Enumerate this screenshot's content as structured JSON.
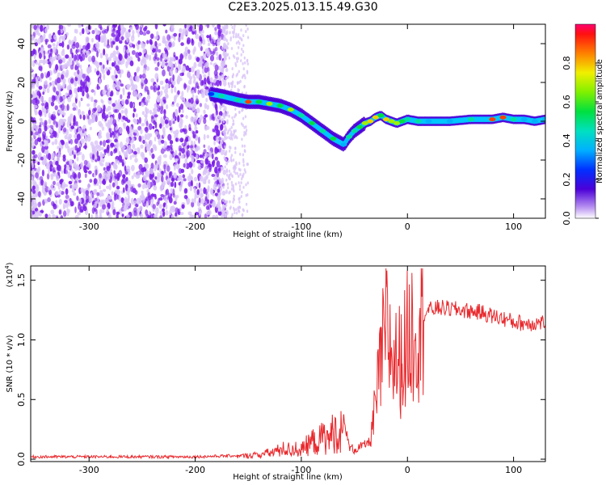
{
  "title": "C2E3.2025.013.15.49.G30",
  "colors": {
    "line": "#e8292d",
    "track_low": "#4a00d8",
    "noise": "#7b1fe8",
    "noise_faint": "#d9c4f8",
    "axis": "#000000"
  },
  "colorbar": {
    "label": "Normalized spectral amplitude",
    "ticks": [
      "0.0",
      "0.2",
      "0.4",
      "0.6",
      "0.8"
    ],
    "tick_values": [
      0.0,
      0.2,
      0.4,
      0.6,
      0.8
    ],
    "range": [
      0,
      1
    ]
  },
  "chart_data": [
    {
      "type": "heatmap",
      "xlabel": "Height of straight line (km)",
      "ylabel": "Frequency (Hz)",
      "xlim": [
        -355,
        130
      ],
      "ylim": [
        -50,
        50
      ],
      "xticks": [
        -300,
        -200,
        -100,
        0,
        100
      ],
      "xtick_labels": [
        "-300",
        "-200",
        "-100",
        "0",
        "100"
      ],
      "yticks": [
        -40,
        -20,
        0,
        20,
        40
      ],
      "ytick_labels": [
        "-40",
        "-20",
        "0",
        "20",
        "40"
      ],
      "track": {
        "x": [
          -185,
          -175,
          -160,
          -150,
          -140,
          -130,
          -120,
          -110,
          -100,
          -90,
          -80,
          -70,
          -60,
          -55,
          -50,
          -45,
          -40,
          -35,
          -30,
          -25,
          -20,
          -15,
          -10,
          -5,
          0,
          10,
          20,
          40,
          60,
          80,
          90,
          100,
          110,
          120,
          130
        ],
        "y": [
          14,
          13,
          11,
          10,
          10,
          9,
          8,
          6,
          3,
          -1,
          -5,
          -9,
          -12,
          -8,
          -5,
          -3,
          -1,
          0,
          2,
          3,
          1,
          0,
          -1,
          0,
          1,
          0,
          0,
          0,
          1,
          1,
          2,
          1,
          1,
          0,
          1
        ],
        "amplitude": [
          0.3,
          0.5,
          0.5,
          0.9,
          0.6,
          0.7,
          0.6,
          0.7,
          0.5,
          0.6,
          0.5,
          0.6,
          0.4,
          0.5,
          0.5,
          0.6,
          0.7,
          0.8,
          0.8,
          0.6,
          0.8,
          0.7,
          0.7,
          0.6,
          0.5,
          0.5,
          0.45,
          0.45,
          0.5,
          0.9,
          0.95,
          0.5,
          0.45,
          0.45,
          0.4
        ]
      }
    },
    {
      "type": "line",
      "xlabel": "Height of straight line (km)",
      "ylabel": "SNR (10 * v/v)",
      "y_multiplier": "(x10",
      "y_multiplier_exp": "4",
      "y_multiplier_close": ")",
      "xlim": [
        -355,
        130
      ],
      "ylim": [
        -0.02,
        1.62
      ],
      "xticks": [
        -300,
        -200,
        -100,
        0,
        100
      ],
      "xtick_labels": [
        "-300",
        "-200",
        "-100",
        "0",
        "100"
      ],
      "yticks": [
        0.0,
        0.5,
        1.0,
        1.5
      ],
      "ytick_labels": [
        "0.0",
        "0.5",
        "1.0",
        "1.5"
      ],
      "series": [
        {
          "x": [
            -355,
            -340,
            -320,
            -300,
            -280,
            -260,
            -240,
            -220,
            -200,
            -180,
            -160,
            -150,
            -140,
            -130,
            -120,
            -115,
            -110,
            -105,
            -100,
            -95,
            -90,
            -85,
            -80,
            -75,
            -70,
            -65,
            -60,
            -55,
            -50,
            -45,
            -40,
            -35,
            -30,
            -25,
            -20,
            -15,
            -10,
            -5,
            0,
            10,
            20,
            30,
            40,
            50,
            60,
            70,
            80,
            90,
            100,
            110,
            120,
            130
          ],
          "y": [
            0.02,
            0.02,
            0.02,
            0.02,
            0.02,
            0.02,
            0.02,
            0.02,
            0.02,
            0.025,
            0.03,
            0.04,
            0.05,
            0.07,
            0.1,
            0.12,
            0.1,
            0.12,
            0.1,
            0.15,
            0.2,
            0.18,
            0.25,
            0.22,
            0.3,
            0.28,
            0.35,
            0.1,
            0.08,
            0.1,
            0.12,
            0.15,
            0.45,
            0.8,
            1.1,
            0.9,
            0.8,
            0.85,
            1.0,
            1.18,
            1.25,
            1.27,
            1.26,
            1.25,
            1.24,
            1.23,
            1.2,
            1.18,
            1.15,
            1.14,
            1.14,
            1.15
          ]
        }
      ]
    }
  ]
}
